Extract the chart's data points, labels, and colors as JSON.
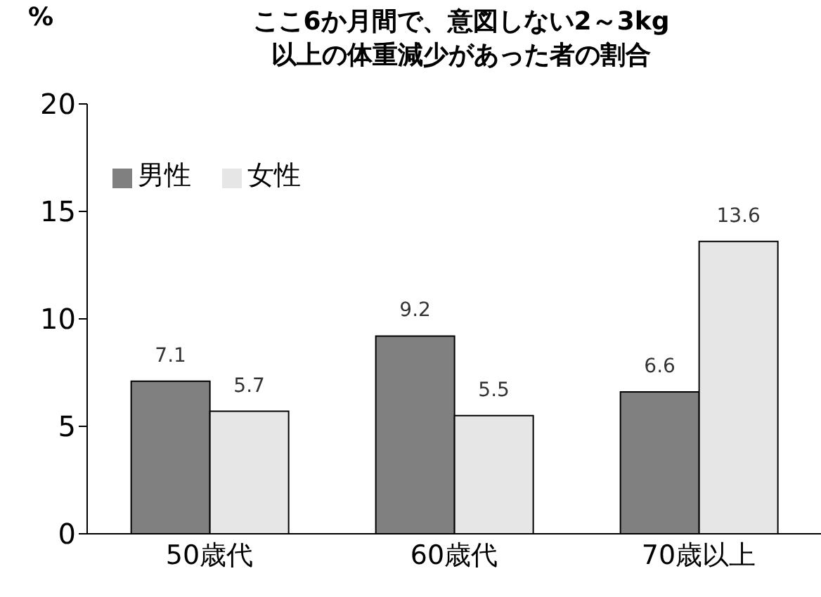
{
  "chart_data": {
    "type": "bar",
    "title": "ここ6か月間で、意図しない2～3kg以上の体重減少があった者の割合",
    "ylabel": "%",
    "categories": [
      "50歳代",
      "60歳代",
      "70歳以上"
    ],
    "series": [
      {
        "name": "男性",
        "color": "#808080",
        "values": [
          7.1,
          9.2,
          6.6
        ]
      },
      {
        "name": "女性",
        "color": "#e6e6e6",
        "values": [
          5.7,
          5.5,
          13.6
        ]
      }
    ],
    "ylim": [
      0,
      20
    ],
    "yticks": [
      0,
      5,
      10,
      15,
      20
    ],
    "legend": "top left",
    "data_labels": true
  }
}
